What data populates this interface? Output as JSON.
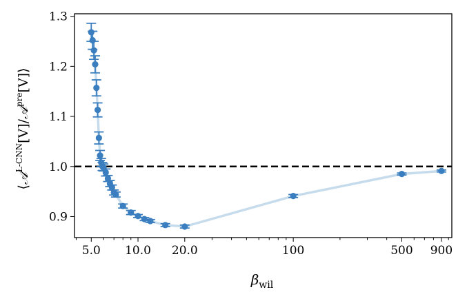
{
  "chart_data": {
    "type": "scatter",
    "xlabel_symbol": "β",
    "xlabel_subscript": "wil",
    "ylabel_text": "⟨𝒜L-CNN[V]/𝒜pre[V]⟩",
    "ylabel_parts": {
      "open": "⟨",
      "script_a1": "𝒜",
      "sup1": "L-CNN",
      "mid": "[V]/",
      "script_a2": "𝒜",
      "sup2": "pre",
      "close": "[V]⟩"
    },
    "x_scale": "log",
    "xlim": [
      3.9,
      1050
    ],
    "ylim": [
      0.858,
      1.305
    ],
    "x_tick_values": [
      5,
      10,
      20,
      100,
      500,
      900
    ],
    "x_tick_labels": [
      "5.0",
      "10.0",
      "20.0",
      "100",
      "500",
      "900"
    ],
    "y_tick_values": [
      0.9,
      1.0,
      1.1,
      1.2,
      1.3
    ],
    "y_tick_labels": [
      "0.9",
      "1.0",
      "1.1",
      "1.2",
      "1.3"
    ],
    "reference_line": {
      "y": 1.0,
      "style": "dashed",
      "color": "#000000"
    },
    "series_color": "#3a7ebf",
    "trend_line_color": "#c6dcec",
    "grid": false,
    "points": [
      {
        "x": 5.0,
        "y": 1.268,
        "err": 0.018
      },
      {
        "x": 5.1,
        "y": 1.252,
        "err": 0.018
      },
      {
        "x": 5.2,
        "y": 1.232,
        "err": 0.018
      },
      {
        "x": 5.3,
        "y": 1.204,
        "err": 0.017
      },
      {
        "x": 5.4,
        "y": 1.157,
        "err": 0.016
      },
      {
        "x": 5.5,
        "y": 1.113,
        "err": 0.014
      },
      {
        "x": 5.6,
        "y": 1.057,
        "err": 0.012
      },
      {
        "x": 5.7,
        "y": 1.022,
        "err": 0.01
      },
      {
        "x": 5.8,
        "y": 1.008,
        "err": 0.008
      },
      {
        "x": 5.9,
        "y": 1.0,
        "err": 0.008
      },
      {
        "x": 6.0,
        "y": 0.998,
        "err": 0.007
      },
      {
        "x": 6.2,
        "y": 0.988,
        "err": 0.007
      },
      {
        "x": 6.4,
        "y": 0.976,
        "err": 0.006
      },
      {
        "x": 6.6,
        "y": 0.966,
        "err": 0.006
      },
      {
        "x": 6.8,
        "y": 0.958,
        "err": 0.005
      },
      {
        "x": 7.0,
        "y": 0.948,
        "err": 0.005
      },
      {
        "x": 7.2,
        "y": 0.944,
        "err": 0.005
      },
      {
        "x": 8.0,
        "y": 0.921,
        "err": 0.004
      },
      {
        "x": 9.0,
        "y": 0.908,
        "err": 0.004
      },
      {
        "x": 10.0,
        "y": 0.901,
        "err": 0.003
      },
      {
        "x": 11.0,
        "y": 0.895,
        "err": 0.003
      },
      {
        "x": 12.0,
        "y": 0.891,
        "err": 0.003
      },
      {
        "x": 15.0,
        "y": 0.883,
        "err": 0.003
      },
      {
        "x": 20.0,
        "y": 0.88,
        "err": 0.003
      },
      {
        "x": 100.0,
        "y": 0.941,
        "err": 0.003
      },
      {
        "x": 500.0,
        "y": 0.985,
        "err": 0.002
      },
      {
        "x": 900.0,
        "y": 0.991,
        "err": 0.002
      }
    ]
  }
}
